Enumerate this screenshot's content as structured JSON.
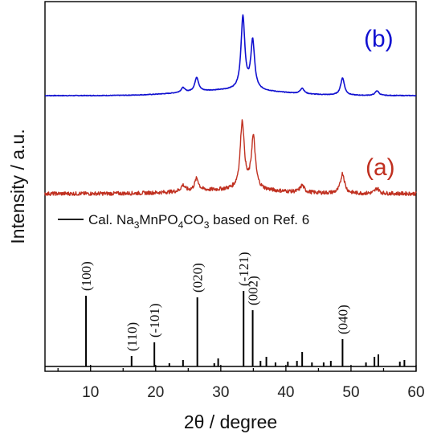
{
  "chart_data": {
    "type": "line",
    "xlabel": "2θ / degree",
    "ylabel": "Intensity / a.u.",
    "xlim": [
      3,
      60
    ],
    "x_ticks": [
      "10",
      "20",
      "30",
      "40",
      "50",
      "60"
    ],
    "y_ticks_shown": false,
    "panel_labels": {
      "b": "(b)",
      "a": "(a)"
    },
    "legend": {
      "prefix": "Cal. Na",
      "sub1": "3",
      "mid1": "MnPO",
      "sub2": "4",
      "mid2": "CO",
      "sub3": "3",
      "suffix": " based on Ref. 6"
    },
    "series": [
      {
        "id": "b",
        "color": "#1010d0",
        "peaks": [
          {
            "x": 24.2,
            "h": 0.06
          },
          {
            "x": 26.3,
            "h": 0.18
          },
          {
            "x": 33.4,
            "h": 0.92
          },
          {
            "x": 34.9,
            "h": 0.62
          },
          {
            "x": 42.5,
            "h": 0.07
          },
          {
            "x": 48.7,
            "h": 0.22
          },
          {
            "x": 54.0,
            "h": 0.06
          }
        ]
      },
      {
        "id": "a",
        "color": "#c03020",
        "peaks": [
          {
            "x": 24.2,
            "h": 0.08
          },
          {
            "x": 26.3,
            "h": 0.16
          },
          {
            "x": 33.3,
            "h": 0.88
          },
          {
            "x": 35.0,
            "h": 0.68
          },
          {
            "x": 42.5,
            "h": 0.09
          },
          {
            "x": 48.7,
            "h": 0.26
          },
          {
            "x": 54.0,
            "h": 0.07
          }
        ]
      },
      {
        "id": "calc",
        "color": "#000000",
        "sticks": [
          {
            "x": 9.3,
            "h": 0.88
          },
          {
            "x": 16.3,
            "h": 0.13
          },
          {
            "x": 19.8,
            "h": 0.3
          },
          {
            "x": 22.1,
            "h": 0.04
          },
          {
            "x": 24.2,
            "h": 0.08
          },
          {
            "x": 26.4,
            "h": 0.86
          },
          {
            "x": 29.0,
            "h": 0.04
          },
          {
            "x": 29.6,
            "h": 0.1
          },
          {
            "x": 33.5,
            "h": 0.94
          },
          {
            "x": 34.9,
            "h": 0.7
          },
          {
            "x": 36.1,
            "h": 0.07
          },
          {
            "x": 37.0,
            "h": 0.12
          },
          {
            "x": 38.4,
            "h": 0.05
          },
          {
            "x": 40.3,
            "h": 0.06
          },
          {
            "x": 41.7,
            "h": 0.07
          },
          {
            "x": 42.5,
            "h": 0.18
          },
          {
            "x": 44.0,
            "h": 0.05
          },
          {
            "x": 45.8,
            "h": 0.05
          },
          {
            "x": 46.9,
            "h": 0.07
          },
          {
            "x": 48.7,
            "h": 0.34
          },
          {
            "x": 52.3,
            "h": 0.05
          },
          {
            "x": 53.6,
            "h": 0.12
          },
          {
            "x": 54.2,
            "h": 0.15
          },
          {
            "x": 57.5,
            "h": 0.06
          },
          {
            "x": 58.2,
            "h": 0.08
          }
        ]
      }
    ],
    "annotations": [
      {
        "text": "(100)",
        "x": 9.3
      },
      {
        "text": "(110)",
        "x": 16.3
      },
      {
        "text": "(-101)",
        "x": 19.8
      },
      {
        "text": "(020)",
        "x": 26.4
      },
      {
        "text": "(-121)",
        "x": 33.5
      },
      {
        "text": "(002)",
        "x": 34.9
      },
      {
        "text": "(040)",
        "x": 48.7
      }
    ]
  }
}
